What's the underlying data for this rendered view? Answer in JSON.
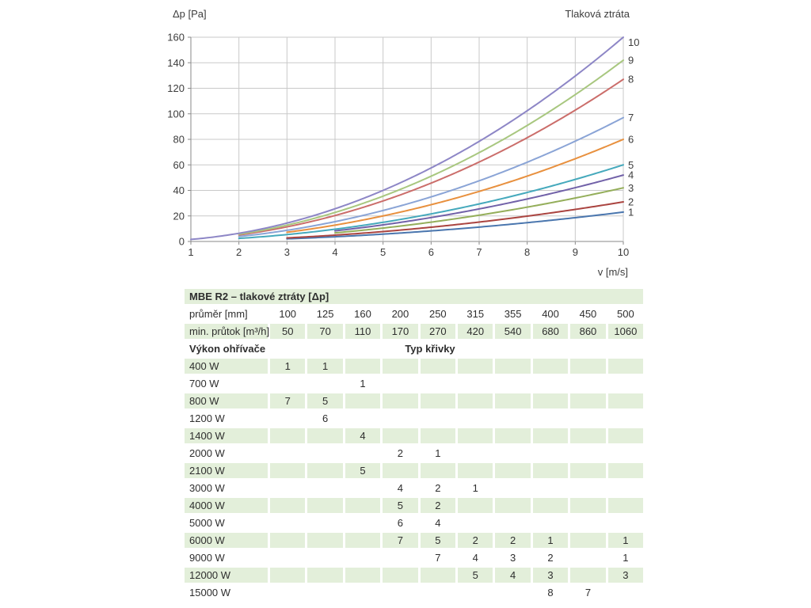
{
  "chart_data": {
    "type": "line",
    "title": "Tlaková ztráta",
    "xlabel": "v [m/s]",
    "ylabel": "Δp [Pa]",
    "xlim": [
      1,
      10
    ],
    "ylim": [
      0,
      160
    ],
    "x_ticks": [
      1,
      2,
      3,
      4,
      5,
      6,
      7,
      8,
      9,
      10
    ],
    "y_ticks": [
      0,
      20,
      40,
      60,
      80,
      100,
      120,
      140,
      160
    ],
    "grid": true,
    "legend_position": "curve-number-labels-at-right-edge",
    "model": "dp = k * v^2 (curves drawn from v_start to v = 10)",
    "series": [
      {
        "name": "1",
        "color": "#4a76ae",
        "k": 0.23,
        "v_start": 3,
        "points": [
          [
            3,
            2.1
          ],
          [
            4,
            3.7
          ],
          [
            5,
            5.8
          ],
          [
            6,
            8.3
          ],
          [
            7,
            11.3
          ],
          [
            8,
            14.7
          ],
          [
            9,
            18.6
          ],
          [
            10,
            23
          ]
        ]
      },
      {
        "name": "2",
        "color": "#aa4440",
        "k": 0.31,
        "v_start": 3,
        "points": [
          [
            3,
            2.8
          ],
          [
            4,
            5.0
          ],
          [
            5,
            7.8
          ],
          [
            6,
            11.2
          ],
          [
            7,
            15.2
          ],
          [
            8,
            19.8
          ],
          [
            9,
            25.1
          ],
          [
            10,
            31
          ]
        ]
      },
      {
        "name": "3",
        "color": "#94ae5a",
        "k": 0.42,
        "v_start": 4,
        "points": [
          [
            4,
            6.7
          ],
          [
            5,
            10.5
          ],
          [
            6,
            15.1
          ],
          [
            7,
            20.6
          ],
          [
            8,
            26.9
          ],
          [
            9,
            34.0
          ],
          [
            10,
            42
          ]
        ]
      },
      {
        "name": "4",
        "color": "#7161a8",
        "k": 0.52,
        "v_start": 4,
        "points": [
          [
            4,
            8.3
          ],
          [
            5,
            13.0
          ],
          [
            6,
            18.7
          ],
          [
            7,
            25.5
          ],
          [
            8,
            33.3
          ],
          [
            9,
            42.1
          ],
          [
            10,
            52
          ]
        ]
      },
      {
        "name": "5",
        "color": "#45a9bc",
        "k": 0.6,
        "v_start": 2,
        "points": [
          [
            2,
            2.4
          ],
          [
            3,
            5.4
          ],
          [
            4,
            9.6
          ],
          [
            5,
            15.0
          ],
          [
            6,
            21.6
          ],
          [
            7,
            29.4
          ],
          [
            8,
            38.4
          ],
          [
            9,
            48.6
          ],
          [
            10,
            60
          ]
        ]
      },
      {
        "name": "6",
        "color": "#e8903e",
        "k": 0.8,
        "v_start": 3,
        "points": [
          [
            3,
            7.2
          ],
          [
            4,
            12.8
          ],
          [
            5,
            20.0
          ],
          [
            6,
            28.8
          ],
          [
            7,
            39.2
          ],
          [
            8,
            51.2
          ],
          [
            9,
            64.8
          ],
          [
            10,
            80
          ]
        ]
      },
      {
        "name": "7",
        "color": "#8aa4d6",
        "k": 0.97,
        "v_start": 2,
        "points": [
          [
            2,
            3.9
          ],
          [
            3,
            8.7
          ],
          [
            4,
            15.5
          ],
          [
            5,
            24.3
          ],
          [
            6,
            34.9
          ],
          [
            7,
            47.5
          ],
          [
            8,
            62.1
          ],
          [
            9,
            78.6
          ],
          [
            10,
            97
          ]
        ]
      },
      {
        "name": "8",
        "color": "#cb6d6a",
        "k": 1.27,
        "v_start": 2,
        "points": [
          [
            2,
            5.1
          ],
          [
            3,
            11.4
          ],
          [
            4,
            20.3
          ],
          [
            5,
            31.8
          ],
          [
            6,
            45.7
          ],
          [
            7,
            62.2
          ],
          [
            8,
            81.3
          ],
          [
            9,
            102.9
          ],
          [
            10,
            127
          ]
        ]
      },
      {
        "name": "9",
        "color": "#a8c77f",
        "k": 1.42,
        "v_start": 2,
        "points": [
          [
            2,
            5.7
          ],
          [
            3,
            12.8
          ],
          [
            4,
            22.7
          ],
          [
            5,
            35.5
          ],
          [
            6,
            51.1
          ],
          [
            7,
            69.6
          ],
          [
            8,
            90.9
          ],
          [
            9,
            115.0
          ],
          [
            10,
            142
          ]
        ]
      },
      {
        "name": "10",
        "color": "#8d86c6",
        "k": 1.6,
        "v_start": 1,
        "points": [
          [
            1,
            1.6
          ],
          [
            2,
            6.4
          ],
          [
            3,
            14.4
          ],
          [
            4,
            25.6
          ],
          [
            5,
            40.0
          ],
          [
            6,
            57.6
          ],
          [
            7,
            78.4
          ],
          [
            8,
            102.4
          ],
          [
            9,
            129.6
          ],
          [
            10,
            160
          ]
        ]
      }
    ]
  },
  "table": {
    "title": "MBE R2 – tlakové ztráty [Δp]",
    "diameter_row": {
      "label": "průměr [mm]",
      "values": [
        "100",
        "125",
        "160",
        "200",
        "250",
        "315",
        "355",
        "400",
        "450",
        "500"
      ],
      "shaded": false
    },
    "flow_row": {
      "label": "min. průtok [m³/h]",
      "values": [
        "50",
        "70",
        "110",
        "170",
        "270",
        "420",
        "540",
        "680",
        "860",
        "1060"
      ],
      "shaded": true
    },
    "section_header": {
      "left": "Výkon ohřívače",
      "right": "Typ křivky"
    },
    "rows": [
      {
        "label": "400 W",
        "values": [
          "1",
          "1",
          "",
          "",
          "",
          "",
          "",
          "",
          "",
          ""
        ],
        "shaded": true
      },
      {
        "label": "700 W",
        "values": [
          "",
          "",
          "1",
          "",
          "",
          "",
          "",
          "",
          "",
          ""
        ],
        "shaded": false
      },
      {
        "label": "800 W",
        "values": [
          "7",
          "5",
          "",
          "",
          "",
          "",
          "",
          "",
          "",
          ""
        ],
        "shaded": true
      },
      {
        "label": "1200 W",
        "values": [
          "",
          "6",
          "",
          "",
          "",
          "",
          "",
          "",
          "",
          ""
        ],
        "shaded": false
      },
      {
        "label": "1400 W",
        "values": [
          "",
          "",
          "4",
          "",
          "",
          "",
          "",
          "",
          "",
          ""
        ],
        "shaded": true
      },
      {
        "label": "2000 W",
        "values": [
          "",
          "",
          "",
          "2",
          "1",
          "",
          "",
          "",
          "",
          ""
        ],
        "shaded": false
      },
      {
        "label": "2100 W",
        "values": [
          "",
          "",
          "5",
          "",
          "",
          "",
          "",
          "",
          "",
          ""
        ],
        "shaded": true
      },
      {
        "label": "3000 W",
        "values": [
          "",
          "",
          "",
          "4",
          "2",
          "1",
          "",
          "",
          "",
          ""
        ],
        "shaded": false
      },
      {
        "label": "4000 W",
        "values": [
          "",
          "",
          "",
          "5",
          "2",
          "",
          "",
          "",
          "",
          ""
        ],
        "shaded": true
      },
      {
        "label": "5000 W",
        "values": [
          "",
          "",
          "",
          "6",
          "4",
          "",
          "",
          "",
          "",
          ""
        ],
        "shaded": false
      },
      {
        "label": "6000 W",
        "values": [
          "",
          "",
          "",
          "7",
          "5",
          "2",
          "2",
          "1",
          "",
          "1"
        ],
        "shaded": true
      },
      {
        "label": "9000 W",
        "values": [
          "",
          "",
          "",
          "",
          "7",
          "4",
          "3",
          "2",
          "",
          "1"
        ],
        "shaded": false
      },
      {
        "label": "12000 W",
        "values": [
          "",
          "",
          "",
          "",
          "",
          "5",
          "4",
          "3",
          "",
          "3"
        ],
        "shaded": true
      },
      {
        "label": "15000 W",
        "values": [
          "",
          "",
          "",
          "",
          "",
          "",
          "",
          "8",
          "7",
          ""
        ],
        "shaded": false
      }
    ],
    "colors": {
      "cell_green": "#e3efda"
    }
  }
}
